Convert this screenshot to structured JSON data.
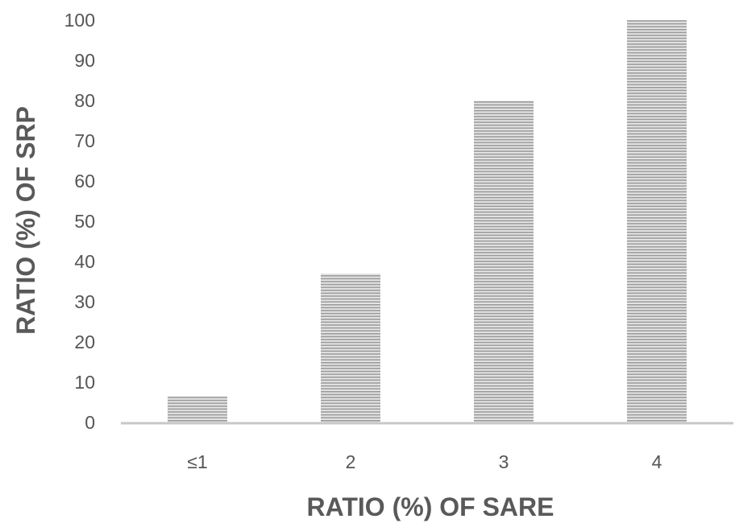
{
  "chart_data": {
    "type": "bar",
    "categories": [
      "≤1",
      "2",
      "3",
      "4"
    ],
    "values": [
      6.5,
      37,
      80,
      100
    ],
    "xlabel": "RATIO (%) OF SARE",
    "ylabel": "RATIO (%) OF SRP",
    "ylim": [
      0,
      100
    ],
    "yticks": [
      0,
      10,
      20,
      30,
      40,
      50,
      60,
      70,
      80,
      90,
      100
    ],
    "grid": false,
    "legend": "none",
    "bar_fill": "horizontal-stripes",
    "bar_color": "#9a9a9a",
    "axis_color": "#c8c8c8"
  }
}
